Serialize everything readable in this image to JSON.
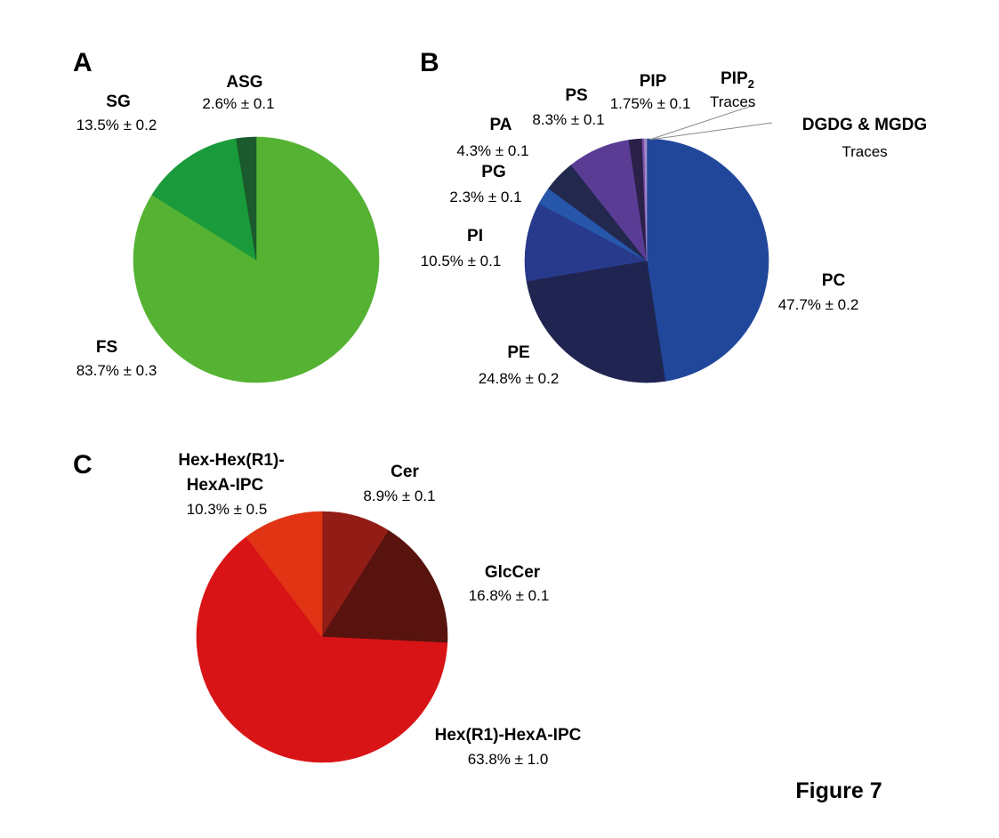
{
  "figure_label": "Figure 7",
  "chart_data": [
    {
      "type": "pie",
      "panel": "A",
      "slices": [
        {
          "name": "FS",
          "value": 83.7,
          "label_value": "83.7% ± 0.3",
          "color": "#55b233"
        },
        {
          "name": "SG",
          "value": 13.5,
          "label_value": "13.5% ± 0.2",
          "color": "#1a9a3a"
        },
        {
          "name": "ASG",
          "value": 2.6,
          "label_value": "2.6% ± 0.1",
          "color": "#1a5a2c"
        }
      ]
    },
    {
      "type": "pie",
      "panel": "B",
      "slices": [
        {
          "name": "PC",
          "value": 47.7,
          "label_value": "47.7% ± 0.2",
          "color": "#21479b"
        },
        {
          "name": "PE",
          "value": 24.8,
          "label_value": "24.8% ± 0.2",
          "color": "#1f2550"
        },
        {
          "name": "PI",
          "value": 10.5,
          "label_value": "10.5% ± 0.1",
          "color": "#283a8c"
        },
        {
          "name": "PG",
          "value": 2.3,
          "label_value": "2.3% ± 0.1",
          "color": "#2757aa"
        },
        {
          "name": "PA",
          "value": 4.3,
          "label_value": "4.3% ± 0.1",
          "color": "#23284f"
        },
        {
          "name": "PS",
          "value": 8.3,
          "label_value": "8.3% ± 0.1",
          "color": "#5b3c95"
        },
        {
          "name": "PIP",
          "value": 1.75,
          "label_value": "1.75% ± 0.1",
          "color": "#2a2048"
        },
        {
          "name": "PIP2",
          "value": 0.3,
          "label_value": "Traces",
          "color": "#7a4fa8"
        },
        {
          "name": "DGDG & MGDG",
          "value": 0.3,
          "label_value": "Traces",
          "color": "#a28cc8"
        }
      ]
    },
    {
      "type": "pie",
      "panel": "C",
      "slices": [
        {
          "name": "Cer",
          "value": 8.9,
          "label_value": "8.9%  ± 0.1",
          "color": "#921c16"
        },
        {
          "name": "GlcCer",
          "value": 16.8,
          "label_value": "16.8% ± 0.1",
          "color": "#58130f"
        },
        {
          "name": "Hex(R1)-HexA-IPC",
          "value": 63.8,
          "label_value": "63.8% ± 1.0",
          "color": "#d91416"
        },
        {
          "name": "Hex-Hex(R1)-HexA-IPC",
          "value": 10.3,
          "label_value": "10.3% ± 0.5",
          "color": "#e03415"
        }
      ]
    }
  ]
}
